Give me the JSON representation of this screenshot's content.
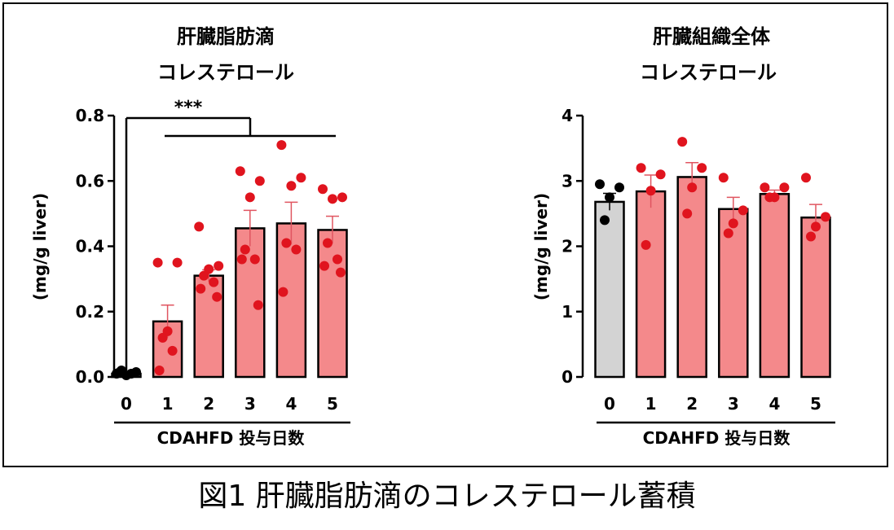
{
  "caption": "図1 肝臓脂肪滴のコレステロール蓄積",
  "colors": {
    "control_bar": "#d3d3d3",
    "treated_bar": "#f4898b",
    "control_dot": "#000000",
    "treated_dot": "#e0141e",
    "error_bar": "#e05560"
  },
  "chart_data": [
    {
      "type": "bar",
      "title_lines": [
        "肝臓脂肪滴",
        "コレステロール"
      ],
      "ylabel": "(mg/g liver)",
      "xlabel": "CDAHFD 投与日数",
      "categories": [
        "0",
        "1",
        "2",
        "3",
        "4",
        "5"
      ],
      "ylim": [
        0,
        0.8
      ],
      "yticks": [
        "0.0",
        "0.2",
        "0.4",
        "0.6",
        "0.8"
      ],
      "series": [
        {
          "values": [
            0.01,
            0.17,
            0.31,
            0.455,
            0.47,
            0.45
          ],
          "sem": [
            0.005,
            0.05,
            0.018,
            0.055,
            0.065,
            0.042
          ]
        }
      ],
      "points": [
        [
          0.01,
          0.015,
          0.005,
          0.02,
          0.01,
          0.012
        ],
        [
          0.35,
          0.35,
          0.14,
          0.12,
          0.08,
          0.02
        ],
        [
          0.46,
          0.34,
          0.33,
          0.31,
          0.29,
          0.27,
          0.245
        ],
        [
          0.63,
          0.6,
          0.55,
          0.39,
          0.36,
          0.36,
          0.22
        ],
        [
          0.71,
          0.61,
          0.585,
          0.41,
          0.39,
          0.26
        ],
        [
          0.575,
          0.55,
          0.545,
          0.41,
          0.36,
          0.34,
          0.32
        ]
      ],
      "significance": "***",
      "grid": false
    },
    {
      "type": "bar",
      "title_lines": [
        "肝臓組織全体",
        "コレステロール"
      ],
      "ylabel": "(mg/g liver)",
      "xlabel": "CDAHFD 投与日数",
      "categories": [
        "0",
        "1",
        "2",
        "3",
        "4",
        "5"
      ],
      "ylim": [
        0,
        4
      ],
      "yticks": [
        "0",
        "1",
        "2",
        "3",
        "4"
      ],
      "series": [
        {
          "values": [
            2.68,
            2.84,
            3.06,
            2.57,
            2.8,
            2.44
          ],
          "sem": [
            0.13,
            0.25,
            0.22,
            0.18,
            0.06,
            0.2
          ]
        }
      ],
      "points": [
        [
          2.95,
          2.9,
          2.75,
          2.4
        ],
        [
          3.2,
          3.1,
          2.85,
          2.02
        ],
        [
          3.6,
          3.2,
          2.9,
          2.5
        ],
        [
          3.05,
          2.55,
          2.35,
          2.2
        ],
        [
          2.9,
          2.9,
          2.75,
          2.75
        ],
        [
          3.05,
          2.45,
          2.3,
          2.15
        ]
      ],
      "grid": false
    }
  ]
}
